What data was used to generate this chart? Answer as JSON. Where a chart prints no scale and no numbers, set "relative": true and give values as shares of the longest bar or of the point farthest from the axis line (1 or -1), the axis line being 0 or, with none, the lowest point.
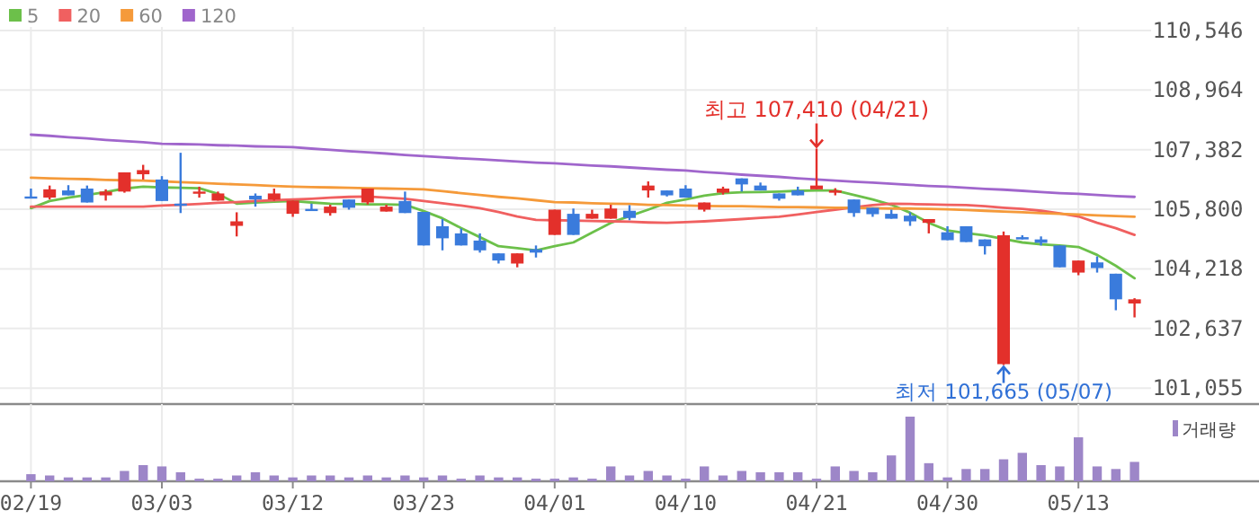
{
  "chart_data": [
    {
      "type": "candlestick",
      "categories": [
        "02/19",
        null,
        null,
        null,
        null,
        null,
        null,
        "03/03",
        null,
        null,
        null,
        null,
        null,
        null,
        "03/12",
        null,
        null,
        null,
        null,
        null,
        null,
        "03/23",
        null,
        null,
        null,
        null,
        null,
        null,
        "04/01",
        null,
        null,
        null,
        null,
        null,
        null,
        "04/10",
        null,
        null,
        null,
        null,
        null,
        null,
        "04/21",
        null,
        null,
        null,
        null,
        null,
        null,
        "04/30",
        null,
        null,
        null,
        null,
        null,
        null,
        "05/13",
        null,
        null,
        null
      ],
      "ohlc": [
        [
          106140,
          106350,
          106100,
          106100
        ],
        [
          106110,
          106430,
          106060,
          106330
        ],
        [
          106300,
          106440,
          106170,
          106170
        ],
        [
          106350,
          106430,
          105980,
          105980
        ],
        [
          106170,
          106330,
          106030,
          106270
        ],
        [
          106270,
          106780,
          106240,
          106780
        ],
        [
          106730,
          106980,
          106590,
          106840
        ],
        [
          106590,
          106680,
          106020,
          106020
        ],
        [
          105950,
          107300,
          105700,
          105910
        ],
        [
          106220,
          106400,
          106110,
          106270
        ],
        [
          106030,
          106270,
          106030,
          106220
        ],
        [
          105360,
          105720,
          105080,
          105480
        ],
        [
          106160,
          106220,
          105870,
          106060
        ],
        [
          106060,
          106350,
          106030,
          106220
        ],
        [
          105680,
          106030,
          105600,
          106030
        ],
        [
          105810,
          105950,
          105760,
          105760
        ],
        [
          105700,
          105920,
          105630,
          105870
        ],
        [
          106060,
          106060,
          105790,
          105840
        ],
        [
          105980,
          106350,
          105930,
          106350
        ],
        [
          105740,
          105920,
          105740,
          105870
        ],
        [
          106020,
          106270,
          105700,
          105700
        ],
        [
          105730,
          105730,
          104840,
          104840
        ],
        [
          105350,
          105540,
          104710,
          105030
        ],
        [
          105160,
          105290,
          104840,
          104840
        ],
        [
          104970,
          105160,
          104650,
          104710
        ],
        [
          104630,
          104630,
          104360,
          104440
        ],
        [
          104360,
          104630,
          104260,
          104630
        ],
        [
          104740,
          104840,
          104520,
          104650
        ],
        [
          105120,
          105790,
          105120,
          105790
        ],
        [
          105680,
          105820,
          105120,
          105120
        ],
        [
          105550,
          105790,
          105550,
          105680
        ],
        [
          105550,
          105920,
          105550,
          105820
        ],
        [
          105760,
          105910,
          105510,
          105570
        ],
        [
          106300,
          106540,
          106110,
          106430
        ],
        [
          106300,
          106300,
          106140,
          106170
        ],
        [
          106350,
          106440,
          106110,
          106110
        ],
        [
          105790,
          105980,
          105740,
          105980
        ],
        [
          106240,
          106400,
          106190,
          106350
        ],
        [
          106620,
          106620,
          106270,
          106460
        ],
        [
          106430,
          106510,
          106300,
          106300
        ],
        [
          106220,
          106220,
          106030,
          106080
        ],
        [
          106300,
          106400,
          106170,
          106170
        ],
        [
          106330,
          107410,
          106330,
          106430
        ],
        [
          106240,
          106360,
          106170,
          106300
        ],
        [
          106060,
          106060,
          105600,
          105700
        ],
        [
          105840,
          105840,
          105600,
          105670
        ],
        [
          105680,
          105790,
          105550,
          105550
        ],
        [
          105630,
          105720,
          105360,
          105480
        ],
        [
          105440,
          105540,
          105160,
          105540
        ],
        [
          105190,
          105350,
          104980,
          104980
        ],
        [
          105350,
          105350,
          104930,
          104930
        ],
        [
          105000,
          105000,
          104600,
          104820
        ],
        [
          101690,
          105210,
          101665,
          105110
        ],
        [
          105060,
          105110,
          105000,
          105000
        ],
        [
          105000,
          105080,
          104840,
          104910
        ],
        [
          104840,
          104840,
          104260,
          104260
        ],
        [
          104120,
          104440,
          104050,
          104440
        ],
        [
          104390,
          104550,
          104120,
          104240
        ],
        [
          104090,
          104090,
          103120,
          103410
        ],
        [
          103300,
          103440,
          102930,
          103410
        ]
      ],
      "series": [
        {
          "name": "5",
          "type": "line",
          "color": "#6cc04a",
          "values": [
            105830,
            106020,
            106110,
            106180,
            106260,
            106350,
            106400,
            106380,
            106370,
            106360,
            106210,
            105950,
            105980,
            106000,
            106020,
            105980,
            105950,
            105940,
            105930,
            105930,
            105920,
            105750,
            105560,
            105300,
            105060,
            104820,
            104770,
            104710,
            104820,
            104920,
            105180,
            105440,
            105620,
            105790,
            105970,
            106060,
            106160,
            106230,
            106250,
            106260,
            106270,
            106290,
            106300,
            106300,
            106180,
            106060,
            105920,
            105710,
            105440,
            105240,
            105170,
            105110,
            105010,
            104920,
            104870,
            104840,
            104800,
            104590,
            104300,
            103970
          ]
        },
        {
          "name": "20",
          "type": "line",
          "color": "#f06060",
          "values": [
            105870,
            105870,
            105870,
            105870,
            105870,
            105870,
            105870,
            105900,
            105920,
            105940,
            105970,
            105990,
            106020,
            106040,
            106060,
            106080,
            106110,
            106130,
            106140,
            106110,
            106080,
            106020,
            105960,
            105900,
            105830,
            105730,
            105610,
            105520,
            105510,
            105500,
            105490,
            105480,
            105470,
            105450,
            105440,
            105460,
            105480,
            105510,
            105540,
            105570,
            105600,
            105660,
            105730,
            105790,
            105850,
            105910,
            105950,
            105940,
            105930,
            105920,
            105910,
            105880,
            105840,
            105810,
            105760,
            105690,
            105610,
            105440,
            105300,
            105120
          ]
        },
        {
          "name": "60",
          "type": "line",
          "color": "#f59a3a",
          "values": [
            106640,
            106620,
            106610,
            106600,
            106580,
            106570,
            106560,
            106540,
            106520,
            106500,
            106480,
            106460,
            106440,
            106420,
            106400,
            106390,
            106380,
            106370,
            106360,
            106350,
            106340,
            106330,
            106280,
            106230,
            106180,
            106130,
            106090,
            106040,
            105990,
            105980,
            105960,
            105950,
            105940,
            105920,
            105910,
            105900,
            105890,
            105880,
            105880,
            105870,
            105860,
            105860,
            105850,
            105840,
            105840,
            105830,
            105820,
            105820,
            105810,
            105800,
            105780,
            105760,
            105740,
            105720,
            105700,
            105680,
            105660,
            105640,
            105620,
            105600
          ]
        },
        {
          "name": "120",
          "type": "line",
          "color": "#a066cc",
          "values": [
            107780,
            107750,
            107710,
            107680,
            107640,
            107610,
            107580,
            107540,
            107530,
            107520,
            107500,
            107490,
            107470,
            107460,
            107450,
            107410,
            107380,
            107340,
            107310,
            107280,
            107240,
            107210,
            107180,
            107150,
            107130,
            107100,
            107070,
            107040,
            107020,
            106990,
            106960,
            106940,
            106910,
            106880,
            106850,
            106830,
            106790,
            106760,
            106720,
            106690,
            106660,
            106620,
            106590,
            106560,
            106530,
            106510,
            106480,
            106450,
            106420,
            106400,
            106370,
            106340,
            106320,
            106290,
            106260,
            106230,
            106210,
            106180,
            106150,
            106130
          ]
        }
      ],
      "ylim": [
        100630,
        110640
      ],
      "yticks": [
        {
          "value": 101055,
          "label": "101,055"
        },
        {
          "value": 102637,
          "label": "102,637"
        },
        {
          "value": 104218,
          "label": "104,218"
        },
        {
          "value": 105800,
          "label": "105,800"
        },
        {
          "value": 107382,
          "label": "107,382"
        },
        {
          "value": 108964,
          "label": "108,964"
        },
        {
          "value": 110546,
          "label": "110,546"
        }
      ],
      "grid": true,
      "legend": "top left",
      "tick_labels": "y",
      "annotations": [
        {
          "text": "최고 107,410 (04/21)",
          "x": "04/21",
          "y": 107410
        },
        {
          "text": "최저 101,665 (05/07)",
          "y": 101665
        }
      ]
    },
    {
      "type": "bar",
      "categories": [
        "02/19",
        null,
        null,
        null,
        null,
        null,
        null,
        "03/03",
        null,
        null,
        null,
        null,
        null,
        null,
        "03/12",
        null,
        null,
        null,
        null,
        null,
        null,
        "03/23",
        null,
        null,
        null,
        null,
        null,
        null,
        "04/01",
        null,
        null,
        null,
        null,
        null,
        null,
        "04/10",
        null,
        null,
        null,
        null,
        null,
        null,
        "04/21",
        null,
        null,
        null,
        null,
        null,
        null,
        "04/30",
        null,
        null,
        null,
        null,
        null,
        null,
        "05/13",
        null,
        null,
        null
      ],
      "series": [
        {
          "name": "거래량",
          "color": "#9d86c8",
          "values": [
            0.11,
            0.09,
            0.06,
            0.06,
            0.06,
            0.16,
            0.25,
            0.23,
            0.14,
            0.04,
            0.04,
            0.09,
            0.14,
            0.09,
            0.06,
            0.09,
            0.09,
            0.06,
            0.09,
            0.06,
            0.09,
            0.06,
            0.09,
            0.04,
            0.09,
            0.06,
            0.06,
            0.04,
            0.04,
            0.06,
            0.04,
            0.23,
            0.09,
            0.16,
            0.09,
            0.04,
            0.23,
            0.09,
            0.16,
            0.14,
            0.14,
            0.14,
            0.04,
            0.23,
            0.16,
            0.14,
            0.4,
            1,
            0.28,
            0.06,
            0.19,
            0.19,
            0.34,
            0.44,
            0.25,
            0.23,
            0.68,
            0.23,
            0.19,
            0.3
          ]
        }
      ],
      "relative": true,
      "grid": "x",
      "legend": "top right",
      "tick_labels": "x"
    }
  ]
}
